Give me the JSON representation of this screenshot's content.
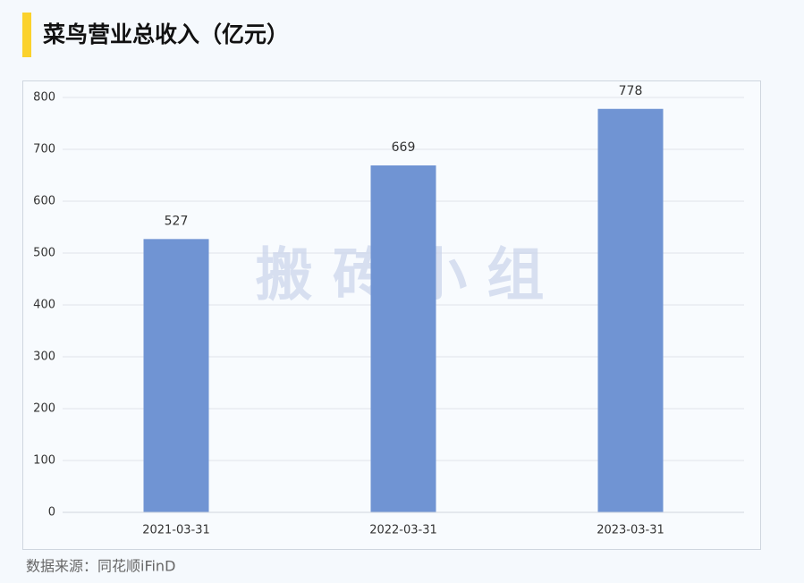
{
  "chart_data": {
    "type": "bar",
    "title": "菜鸟营业总收入（亿元）",
    "categories": [
      "2021-03-31",
      "2022-03-31",
      "2023-03-31"
    ],
    "values": [
      527,
      669,
      778
    ],
    "color": "#7094d3",
    "ylim": [
      0,
      800
    ],
    "yticks": [
      0,
      100,
      200,
      300,
      400,
      500,
      600,
      700,
      800
    ],
    "grid": true,
    "watermark": "搬 砖 小 组",
    "source": "数据来源：同花顺iFinD"
  }
}
